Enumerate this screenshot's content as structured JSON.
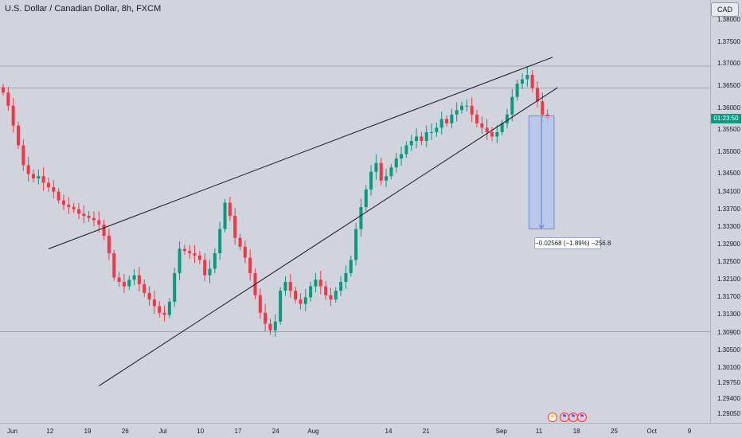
{
  "header": {
    "title": "U.S. Dollar / Canadian Dollar, 8h, FXCM",
    "currency": "CAD"
  },
  "countdown": "01:23:50",
  "measure": {
    "label": "−0.02568 (−1.89%) −256.8"
  },
  "colors": {
    "background": "#d1d4dc",
    "up": "#089981",
    "down": "#f23645",
    "trendline": "#131722",
    "hline": "#9598a1",
    "measure_fill": "#b4c4ec",
    "measure_stroke": "#5b7bd5"
  },
  "events": [
    "lightning-icon",
    "us-flag-icon",
    "us-flag-icon",
    "us-flag-icon"
  ],
  "chart_data": {
    "type": "candlestick",
    "title": "U.S. Dollar / Canadian Dollar, 8h, FXCM",
    "xlabel": "",
    "ylabel": "",
    "y_ticks": [
      "1.38000",
      "1.37500",
      "1.37000",
      "1.36500",
      "1.36000",
      "1.35500",
      "1.35000",
      "1.34500",
      "1.34100",
      "1.33700",
      "1.33300",
      "1.32900",
      "1.32500",
      "1.32100",
      "1.31700",
      "1.31300",
      "1.30900",
      "1.30500",
      "1.30100",
      "1.29750",
      "1.29400",
      "1.29050"
    ],
    "x_ticks": [
      "Jun",
      "12",
      "19",
      "26",
      "Jul",
      "10",
      "17",
      "24",
      "Aug",
      "14",
      "21",
      "Sep",
      "11",
      "18",
      "25",
      "Oct",
      "9"
    ],
    "ylim": [
      1.2885,
      1.3845
    ],
    "last_price": 1.3576,
    "horizontal_levels": [
      1.3695,
      1.3645,
      1.3092
    ],
    "trendlines": [
      {
        "from": [
          9,
          1.328
        ],
        "to": [
          109,
          1.3715
        ]
      },
      {
        "from": [
          19,
          1.2969
        ],
        "to": [
          110,
          1.3646
        ]
      }
    ],
    "measurement": {
      "start_index": 104,
      "end_index": 109,
      "from_price": 1.3582,
      "to_price": 1.33252,
      "change": "−0.02568",
      "percent": "−1.89%",
      "pips": "−256.8"
    },
    "closes": [
      1.3635,
      1.3605,
      1.356,
      1.3515,
      1.347,
      1.345,
      1.344,
      1.3445,
      1.343,
      1.342,
      1.341,
      1.339,
      1.338,
      1.3375,
      1.337,
      1.336,
      1.3355,
      1.335,
      1.3345,
      1.3335,
      1.331,
      1.327,
      1.3215,
      1.3205,
      1.3195,
      1.321,
      1.322,
      1.32,
      1.318,
      1.3165,
      1.315,
      1.3135,
      1.313,
      1.316,
      1.3225,
      1.328,
      1.3275,
      1.327,
      1.3265,
      1.3255,
      1.322,
      1.3235,
      1.327,
      1.3325,
      1.3385,
      1.3355,
      1.3305,
      1.3285,
      1.326,
      1.3225,
      1.3175,
      1.3135,
      1.311,
      1.3095,
      1.3115,
      1.3185,
      1.3205,
      1.3185,
      1.3165,
      1.3155,
      1.317,
      1.3195,
      1.321,
      1.3195,
      1.3175,
      1.3165,
      1.3185,
      1.3205,
      1.3225,
      1.3255,
      1.3325,
      1.3375,
      1.3415,
      1.3455,
      1.3475,
      1.3435,
      1.3445,
      1.3465,
      1.3485,
      1.3495,
      1.3515,
      1.3525,
      1.3535,
      1.3525,
      1.3545,
      1.3545,
      1.3555,
      1.3575,
      1.3565,
      1.3585,
      1.3595,
      1.3605,
      1.3605,
      1.3585,
      1.3565,
      1.3555,
      1.3545,
      1.3535,
      1.3545,
      1.3565,
      1.3585,
      1.3625,
      1.3655,
      1.3665,
      1.3675,
      1.3645,
      1.3615,
      1.3585,
      1.3576
    ]
  }
}
